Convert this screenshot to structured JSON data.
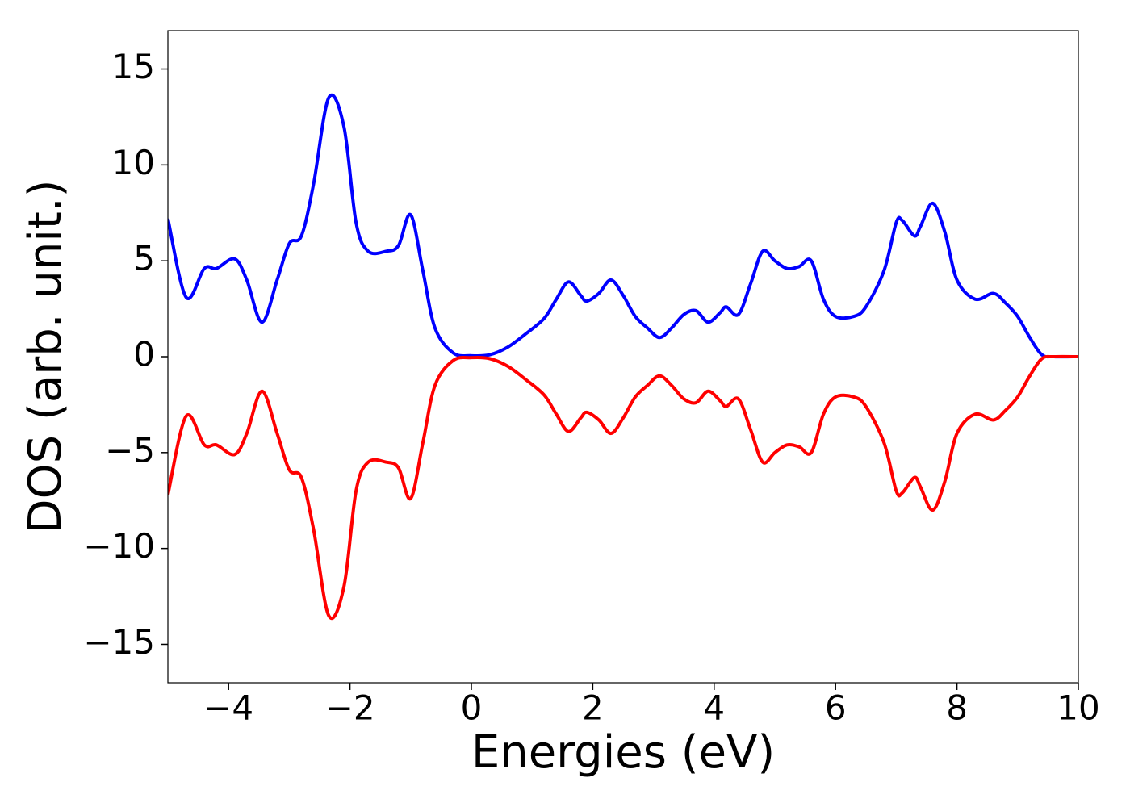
{
  "chart_data": {
    "type": "line",
    "xlabel": "Energies (eV)",
    "ylabel": "DOS (arb. unit.)",
    "x": [
      -5,
      -4.7,
      -4.4,
      -4.2,
      -3.9,
      -3.7,
      -3.45,
      -3.2,
      -3.0,
      -2.8,
      -2.6,
      -2.35,
      -2.1,
      -1.9,
      -1.7,
      -1.4,
      -1.2,
      -1.0,
      -0.8,
      -0.6,
      -0.3,
      0,
      0.3,
      0.6,
      0.9,
      1.2,
      1.4,
      1.6,
      1.8,
      1.9,
      2.1,
      2.3,
      2.5,
      2.7,
      2.9,
      3.1,
      3.3,
      3.5,
      3.7,
      3.9,
      4.1,
      4.2,
      4.4,
      4.6,
      4.8,
      5.0,
      5.2,
      5.4,
      5.6,
      5.8,
      6.0,
      6.3,
      6.5,
      6.8,
      7.0,
      7.1,
      7.3,
      7.4,
      7.6,
      7.8,
      8.0,
      8.3,
      8.6,
      8.8,
      9.0,
      9.2,
      9.4,
      9.6,
      10
    ],
    "series": [
      {
        "color": "#0000ff",
        "values": [
          7.2,
          3.1,
          4.6,
          4.6,
          5.1,
          4.0,
          1.8,
          4.0,
          5.9,
          6.3,
          9.0,
          13.5,
          12.0,
          7.0,
          5.5,
          5.5,
          5.8,
          7.4,
          4.5,
          1.5,
          0.2,
          0.05,
          0.1,
          0.5,
          1.2,
          2.0,
          3.0,
          3.9,
          3.2,
          2.9,
          3.3,
          4.0,
          3.2,
          2.1,
          1.5,
          1.0,
          1.5,
          2.2,
          2.4,
          1.8,
          2.3,
          2.6,
          2.2,
          3.8,
          5.5,
          5.0,
          4.6,
          4.7,
          5.0,
          3.0,
          2.1,
          2.1,
          2.6,
          4.5,
          7.0,
          7.1,
          6.3,
          6.8,
          8.0,
          6.5,
          4.0,
          3.0,
          3.3,
          2.8,
          2.1,
          1.0,
          0.1,
          0,
          0
        ]
      },
      {
        "color": "#ff0000",
        "values": [
          -7.2,
          -3.1,
          -4.6,
          -4.6,
          -5.1,
          -4.0,
          -1.8,
          -4.0,
          -5.9,
          -6.3,
          -9.0,
          -13.5,
          -12.0,
          -7.0,
          -5.5,
          -5.5,
          -5.8,
          -7.4,
          -4.5,
          -1.5,
          -0.2,
          -0.05,
          -0.1,
          -0.5,
          -1.2,
          -2.0,
          -3.0,
          -3.9,
          -3.2,
          -2.9,
          -3.3,
          -4.0,
          -3.2,
          -2.1,
          -1.5,
          -1.0,
          -1.5,
          -2.2,
          -2.4,
          -1.8,
          -2.3,
          -2.6,
          -2.2,
          -3.8,
          -5.5,
          -5.0,
          -4.6,
          -4.7,
          -5.0,
          -3.0,
          -2.1,
          -2.1,
          -2.6,
          -4.5,
          -7.0,
          -7.1,
          -6.3,
          -6.8,
          -8.0,
          -6.5,
          -4.0,
          -3.0,
          -3.3,
          -2.8,
          -2.1,
          -1.0,
          -0.1,
          0,
          0
        ]
      }
    ],
    "xlim": [
      -5,
      10
    ],
    "xticks": [
      {
        "value": -4,
        "label": "−4"
      },
      {
        "value": -2,
        "label": "−2"
      },
      0,
      2,
      4,
      6,
      8,
      10
    ],
    "ylim": [
      -17,
      17
    ],
    "yticks": [
      {
        "value": -15,
        "label": "−15"
      },
      {
        "value": -10,
        "label": "−10"
      },
      {
        "value": -5,
        "label": "−5"
      },
      0,
      5,
      10,
      15
    ],
    "grid": false
  }
}
